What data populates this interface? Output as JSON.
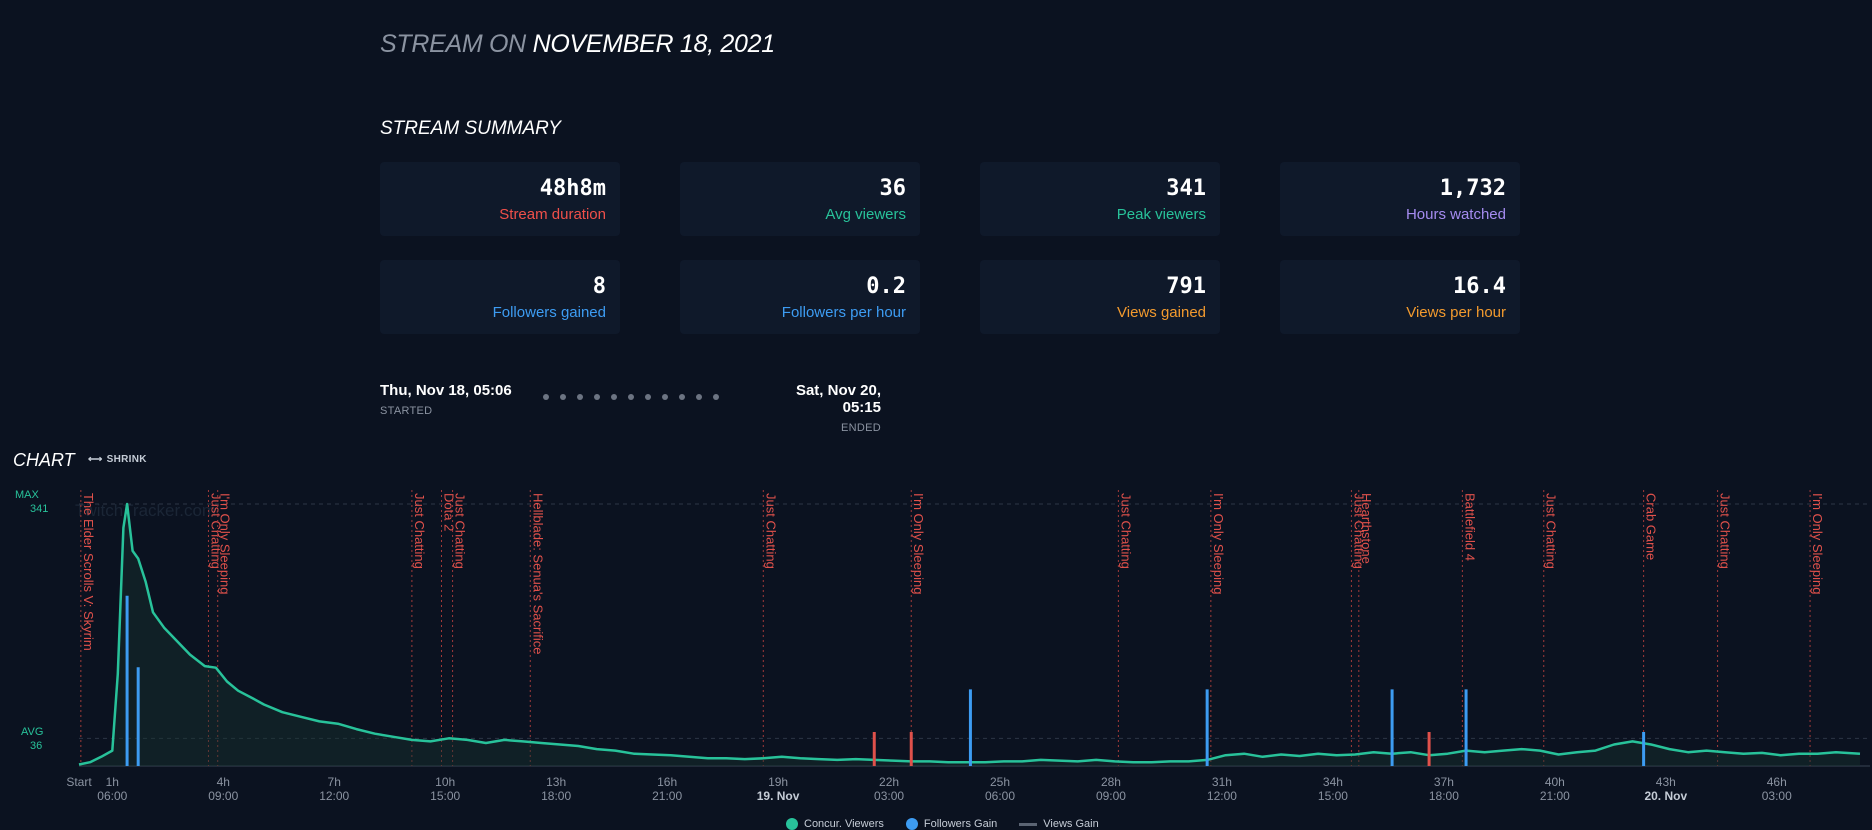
{
  "page": {
    "title_prefix": "STREAM ON",
    "title_date": "NOVEMBER 18, 2021",
    "summary_title": "STREAM SUMMARY"
  },
  "stats": [
    {
      "value": "48h8m",
      "label": "Stream duration",
      "color": "#f0504a"
    },
    {
      "value": "36",
      "label": "Avg viewers",
      "color": "#28c29a"
    },
    {
      "value": "341",
      "label": "Peak viewers",
      "color": "#28c29a"
    },
    {
      "value": "1,732",
      "label": "Hours watched",
      "color": "#a58cf0"
    },
    {
      "value": "8",
      "label": "Followers gained",
      "color": "#3d9cf2"
    },
    {
      "value": "0.2",
      "label": "Followers per hour",
      "color": "#3d9cf2"
    },
    {
      "value": "791",
      "label": "Views gained",
      "color": "#f29a2e"
    },
    {
      "value": "16.4",
      "label": "Views per hour",
      "color": "#f29a2e"
    }
  ],
  "range": {
    "start": "Thu, Nov 18, 05:06",
    "start_tag": "STARTED",
    "end": "Sat, Nov 20, 05:15",
    "end_tag": "ENDED",
    "dot_count": 11
  },
  "chart_section": {
    "title": "CHART",
    "shrink_label": "SHRINK",
    "watermark": "TwitchTracker.com",
    "max_label": "MAX",
    "max_value": "341",
    "avg_label": "AVG",
    "avg_value": "36"
  },
  "chart_data": {
    "type": "line",
    "y_max": 341,
    "avg": 36,
    "x_range_hours": [
      0,
      48.15
    ],
    "ticks": [
      {
        "h": 0,
        "top": "Start",
        "bottom": ""
      },
      {
        "h": 0.9,
        "top": "1h",
        "bottom": "06:00"
      },
      {
        "h": 3.9,
        "top": "4h",
        "bottom": "09:00"
      },
      {
        "h": 6.9,
        "top": "7h",
        "bottom": "12:00"
      },
      {
        "h": 9.9,
        "top": "10h",
        "bottom": "15:00"
      },
      {
        "h": 12.9,
        "top": "13h",
        "bottom": "18:00"
      },
      {
        "h": 15.9,
        "top": "16h",
        "bottom": "21:00"
      },
      {
        "h": 18.9,
        "top": "19h",
        "bottom": "19. Nov"
      },
      {
        "h": 21.9,
        "top": "22h",
        "bottom": "03:00"
      },
      {
        "h": 24.9,
        "top": "25h",
        "bottom": "06:00"
      },
      {
        "h": 27.9,
        "top": "28h",
        "bottom": "09:00"
      },
      {
        "h": 30.9,
        "top": "31h",
        "bottom": "12:00"
      },
      {
        "h": 33.9,
        "top": "34h",
        "bottom": "15:00"
      },
      {
        "h": 36.9,
        "top": "37h",
        "bottom": "18:00"
      },
      {
        "h": 39.9,
        "top": "40h",
        "bottom": "21:00"
      },
      {
        "h": 42.9,
        "top": "43h",
        "bottom": "20. Nov"
      },
      {
        "h": 45.9,
        "top": "46h",
        "bottom": "03:00"
      }
    ],
    "games": [
      {
        "h": 0.05,
        "name": "The Elder Scrolls V: Skyrim"
      },
      {
        "h": 3.5,
        "name": "Just Chatting"
      },
      {
        "h": 3.75,
        "name": "I'm Only Sleeping"
      },
      {
        "h": 9.0,
        "name": "Just Chatting"
      },
      {
        "h": 9.8,
        "name": "Dota 2"
      },
      {
        "h": 10.1,
        "name": "Just Chatting"
      },
      {
        "h": 12.2,
        "name": "Hellblade: Senua's Sacrifice"
      },
      {
        "h": 18.5,
        "name": "Just Chatting"
      },
      {
        "h": 22.5,
        "name": "I'm Only Sleeping"
      },
      {
        "h": 28.1,
        "name": "Just Chatting"
      },
      {
        "h": 30.6,
        "name": "I'm Only Sleeping"
      },
      {
        "h": 34.4,
        "name": "Just Chatting"
      },
      {
        "h": 34.6,
        "name": "Hearthstone"
      },
      {
        "h": 37.4,
        "name": "Battlefield 4"
      },
      {
        "h": 39.6,
        "name": "Just Chatting"
      },
      {
        "h": 42.3,
        "name": "Crab Game"
      },
      {
        "h": 44.3,
        "name": "Just Chatting"
      },
      {
        "h": 46.8,
        "name": "I'm Only Sleeping"
      }
    ],
    "series": [
      {
        "name": "Concur. Viewers",
        "color": "#28c29a",
        "points": [
          [
            0,
            2
          ],
          [
            0.3,
            5
          ],
          [
            0.6,
            12
          ],
          [
            0.9,
            20
          ],
          [
            1.05,
            120
          ],
          [
            1.2,
            310
          ],
          [
            1.3,
            341
          ],
          [
            1.45,
            280
          ],
          [
            1.6,
            270
          ],
          [
            1.8,
            240
          ],
          [
            2.0,
            200
          ],
          [
            2.3,
            180
          ],
          [
            2.6,
            165
          ],
          [
            3.0,
            145
          ],
          [
            3.4,
            130
          ],
          [
            3.7,
            128
          ],
          [
            4.0,
            110
          ],
          [
            4.3,
            98
          ],
          [
            4.7,
            88
          ],
          [
            5.0,
            80
          ],
          [
            5.5,
            70
          ],
          [
            6.0,
            64
          ],
          [
            6.5,
            58
          ],
          [
            7.0,
            55
          ],
          [
            7.5,
            48
          ],
          [
            8.0,
            42
          ],
          [
            8.5,
            38
          ],
          [
            9.0,
            34
          ],
          [
            9.5,
            32
          ],
          [
            10.0,
            36
          ],
          [
            10.5,
            34
          ],
          [
            11.0,
            30
          ],
          [
            11.5,
            34
          ],
          [
            12.0,
            32
          ],
          [
            12.5,
            30
          ],
          [
            13.0,
            28
          ],
          [
            13.5,
            26
          ],
          [
            14.0,
            22
          ],
          [
            14.5,
            20
          ],
          [
            15.0,
            16
          ],
          [
            15.5,
            15
          ],
          [
            16.0,
            14
          ],
          [
            16.5,
            12
          ],
          [
            17.0,
            10
          ],
          [
            17.5,
            10
          ],
          [
            18.0,
            9
          ],
          [
            18.5,
            10
          ],
          [
            19.0,
            12
          ],
          [
            19.5,
            10
          ],
          [
            20.0,
            9
          ],
          [
            20.5,
            8
          ],
          [
            21.0,
            9
          ],
          [
            21.5,
            8
          ],
          [
            22.0,
            7
          ],
          [
            22.5,
            6
          ],
          [
            23.0,
            6
          ],
          [
            23.5,
            5
          ],
          [
            24.0,
            5
          ],
          [
            24.5,
            5
          ],
          [
            25.0,
            6
          ],
          [
            25.5,
            6
          ],
          [
            26.0,
            8
          ],
          [
            26.5,
            7
          ],
          [
            27.0,
            6
          ],
          [
            27.5,
            8
          ],
          [
            28.0,
            6
          ],
          [
            28.5,
            5
          ],
          [
            29.0,
            5
          ],
          [
            29.5,
            6
          ],
          [
            30.0,
            6
          ],
          [
            30.5,
            8
          ],
          [
            31.0,
            14
          ],
          [
            31.5,
            16
          ],
          [
            32.0,
            12
          ],
          [
            32.5,
            15
          ],
          [
            33.0,
            13
          ],
          [
            33.5,
            16
          ],
          [
            34.0,
            14
          ],
          [
            34.5,
            15
          ],
          [
            35.0,
            18
          ],
          [
            35.5,
            16
          ],
          [
            36.0,
            18
          ],
          [
            36.5,
            14
          ],
          [
            37.0,
            16
          ],
          [
            37.5,
            20
          ],
          [
            38.0,
            18
          ],
          [
            38.5,
            20
          ],
          [
            39.0,
            22
          ],
          [
            39.5,
            20
          ],
          [
            40.0,
            15
          ],
          [
            40.5,
            18
          ],
          [
            41.0,
            20
          ],
          [
            41.5,
            28
          ],
          [
            42.0,
            32
          ],
          [
            42.5,
            28
          ],
          [
            43.0,
            22
          ],
          [
            43.5,
            18
          ],
          [
            44.0,
            20
          ],
          [
            44.5,
            18
          ],
          [
            45.0,
            16
          ],
          [
            45.5,
            17
          ],
          [
            46.0,
            14
          ],
          [
            46.5,
            16
          ],
          [
            47.0,
            16
          ],
          [
            47.5,
            18
          ],
          [
            48.15,
            16
          ]
        ]
      },
      {
        "name": "Followers Gain",
        "color": "#3d9cf2",
        "bars": [
          [
            1.3,
            1
          ],
          [
            1.6,
            0.58
          ],
          [
            24.1,
            0.45
          ],
          [
            30.5,
            0.45
          ],
          [
            35.5,
            0.45
          ],
          [
            37.5,
            0.45
          ]
        ]
      },
      {
        "name": "Views Gain",
        "color": "#5b6473",
        "bars": []
      }
    ],
    "red_marks": [
      21.5,
      22.5,
      36.5
    ],
    "extra_blue_marks": [
      42.3
    ]
  },
  "legend": [
    {
      "label": "Concur. Viewers",
      "color": "#28c29a",
      "kind": "dot"
    },
    {
      "label": "Followers Gain",
      "color": "#3d9cf2",
      "kind": "dot"
    },
    {
      "label": "Views Gain",
      "color": "#5b6473",
      "kind": "line"
    }
  ]
}
